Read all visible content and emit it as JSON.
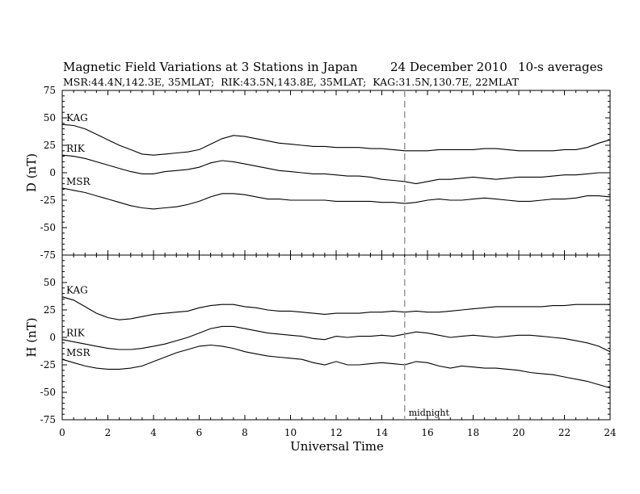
{
  "chart_data": {
    "type": "line",
    "title": "Magnetic Field Variations at 3 Stations in Japan",
    "date": "24 December 2010",
    "averaging": "10-s averages",
    "subtitle": "MSR:44.4N,142.3E, 35MLAT;  RIK:43.5N,143.8E, 35MLAT;  KAG:31.5N,130.7E, 22MLAT",
    "xlabel": "Universal Time",
    "xlim": [
      0,
      24
    ],
    "xticks": [
      0,
      2,
      4,
      6,
      8,
      10,
      12,
      14,
      16,
      18,
      20,
      22,
      24
    ],
    "marker": {
      "x": 15,
      "label": "midnight"
    },
    "panels": [
      {
        "ylabel": "D (nT)",
        "ylim": [
          -75,
          75
        ],
        "yticks": [
          75,
          50,
          25,
          0,
          -25,
          -50,
          -75
        ],
        "series": [
          {
            "name": "KAG",
            "x": [
              0,
              0.5,
              1,
              1.5,
              2,
              2.5,
              3,
              3.5,
              4,
              4.5,
              5,
              5.5,
              6,
              6.5,
              7,
              7.5,
              8,
              8.5,
              9,
              9.5,
              10,
              10.5,
              11,
              11.5,
              12,
              12.5,
              13,
              13.5,
              14,
              14.5,
              15,
              15.5,
              16,
              16.5,
              17,
              17.5,
              18,
              18.5,
              19,
              19.5,
              20,
              20.5,
              21,
              21.5,
              22,
              22.5,
              23,
              23.5,
              24
            ],
            "values": [
              44,
              43,
              40,
              35,
              30,
              25,
              21,
              17,
              16,
              17,
              18,
              19,
              21,
              26,
              31,
              34,
              33,
              31,
              29,
              27,
              26,
              25,
              24,
              24,
              23,
              23,
              23,
              22,
              22,
              21,
              20,
              20,
              20,
              21,
              21,
              21,
              21,
              22,
              22,
              21,
              20,
              20,
              20,
              20,
              21,
              21,
              23,
              27,
              30
            ]
          },
          {
            "name": "RIK",
            "x": [
              0,
              0.5,
              1,
              1.5,
              2,
              2.5,
              3,
              3.5,
              4,
              4.5,
              5,
              5.5,
              6,
              6.5,
              7,
              7.5,
              8,
              8.5,
              9,
              9.5,
              10,
              10.5,
              11,
              11.5,
              12,
              12.5,
              13,
              13.5,
              14,
              14.5,
              15,
              15.5,
              16,
              16.5,
              17,
              17.5,
              18,
              18.5,
              19,
              19.5,
              20,
              20.5,
              21,
              21.5,
              22,
              22.5,
              23,
              23.5,
              24
            ],
            "values": [
              16,
              15,
              13,
              10,
              7,
              4,
              1,
              -1,
              -1,
              1,
              2,
              3,
              5,
              9,
              11,
              10,
              8,
              6,
              4,
              2,
              1,
              0,
              -1,
              -1,
              -2,
              -3,
              -3,
              -4,
              -6,
              -7,
              -8,
              -10,
              -8,
              -6,
              -6,
              -5,
              -4,
              -5,
              -6,
              -5,
              -4,
              -4,
              -4,
              -3,
              -2,
              -2,
              -1,
              0,
              0
            ]
          },
          {
            "name": "MSR",
            "x": [
              0,
              0.5,
              1,
              1.5,
              2,
              2.5,
              3,
              3.5,
              4,
              4.5,
              5,
              5.5,
              6,
              6.5,
              7,
              7.5,
              8,
              8.5,
              9,
              9.5,
              10,
              10.5,
              11,
              11.5,
              12,
              12.5,
              13,
              13.5,
              14,
              14.5,
              15,
              15.5,
              16,
              16.5,
              17,
              17.5,
              18,
              18.5,
              19,
              19.5,
              20,
              20.5,
              21,
              21.5,
              22,
              22.5,
              23,
              23.5,
              24
            ],
            "values": [
              -14,
              -16,
              -18,
              -21,
              -24,
              -27,
              -30,
              -32,
              -33,
              -32,
              -31,
              -29,
              -26,
              -22,
              -19,
              -19,
              -20,
              -22,
              -24,
              -24,
              -25,
              -25,
              -25,
              -25,
              -26,
              -26,
              -26,
              -26,
              -27,
              -27,
              -28,
              -27,
              -25,
              -24,
              -25,
              -25,
              -24,
              -23,
              -24,
              -25,
              -26,
              -26,
              -25,
              -24,
              -24,
              -23,
              -21,
              -21,
              -22
            ]
          }
        ]
      },
      {
        "ylabel": "H (nT)",
        "ylim": [
          -75,
          75
        ],
        "yticks": [
          50,
          25,
          0,
          -25,
          -50,
          -75
        ],
        "series": [
          {
            "name": "KAG",
            "x": [
              0,
              0.5,
              1,
              1.5,
              2,
              2.5,
              3,
              3.5,
              4,
              4.5,
              5,
              5.5,
              6,
              6.5,
              7,
              7.5,
              8,
              8.5,
              9,
              9.5,
              10,
              10.5,
              11,
              11.5,
              12,
              12.5,
              13,
              13.5,
              14,
              14.5,
              15,
              15.5,
              16,
              16.5,
              17,
              17.5,
              18,
              18.5,
              19,
              19.5,
              20,
              20.5,
              21,
              21.5,
              22,
              22.5,
              23,
              23.5,
              24
            ],
            "values": [
              37,
              34,
              28,
              22,
              18,
              16,
              17,
              19,
              21,
              22,
              23,
              24,
              27,
              29,
              30,
              30,
              28,
              27,
              25,
              24,
              24,
              23,
              22,
              21,
              22,
              22,
              22,
              23,
              23,
              24,
              23,
              24,
              23,
              23,
              24,
              25,
              26,
              27,
              28,
              28,
              28,
              28,
              28,
              29,
              29,
              30,
              30,
              30,
              30
            ]
          },
          {
            "name": "RIK",
            "x": [
              0,
              0.5,
              1,
              1.5,
              2,
              2.5,
              3,
              3.5,
              4,
              4.5,
              5,
              5.5,
              6,
              6.5,
              7,
              7.5,
              8,
              8.5,
              9,
              9.5,
              10,
              10.5,
              11,
              11.5,
              12,
              12.5,
              13,
              13.5,
              14,
              14.5,
              15,
              15.5,
              16,
              16.5,
              17,
              17.5,
              18,
              18.5,
              19,
              19.5,
              20,
              20.5,
              21,
              21.5,
              22,
              22.5,
              23,
              23.5,
              24
            ],
            "values": [
              -2,
              -4,
              -6,
              -8,
              -10,
              -11,
              -11,
              -10,
              -8,
              -6,
              -3,
              0,
              4,
              8,
              10,
              10,
              8,
              6,
              4,
              3,
              2,
              1,
              -1,
              -2,
              1,
              0,
              1,
              1,
              2,
              1,
              3,
              5,
              4,
              2,
              0,
              1,
              2,
              1,
              0,
              1,
              2,
              2,
              1,
              0,
              -1,
              -3,
              -5,
              -8,
              -13
            ]
          },
          {
            "name": "MSR",
            "x": [
              0,
              0.5,
              1,
              1.5,
              2,
              2.5,
              3,
              3.5,
              4,
              4.5,
              5,
              5.5,
              6,
              6.5,
              7,
              7.5,
              8,
              8.5,
              9,
              9.5,
              10,
              10.5,
              11,
              11.5,
              12,
              12.5,
              13,
              13.5,
              14,
              14.5,
              15,
              15.5,
              16,
              16.5,
              17,
              17.5,
              18,
              18.5,
              19,
              19.5,
              20,
              20.5,
              21,
              21.5,
              22,
              22.5,
              23,
              23.5,
              24
            ],
            "values": [
              -20,
              -23,
              -26,
              -28,
              -29,
              -29,
              -28,
              -26,
              -22,
              -18,
              -14,
              -11,
              -8,
              -7,
              -8,
              -10,
              -13,
              -15,
              -17,
              -18,
              -19,
              -20,
              -23,
              -25,
              -22,
              -25,
              -25,
              -24,
              -23,
              -24,
              -25,
              -22,
              -23,
              -26,
              -28,
              -26,
              -27,
              -28,
              -28,
              -29,
              -30,
              -32,
              -33,
              -34,
              -36,
              -38,
              -40,
              -43,
              -46
            ]
          }
        ]
      }
    ]
  }
}
